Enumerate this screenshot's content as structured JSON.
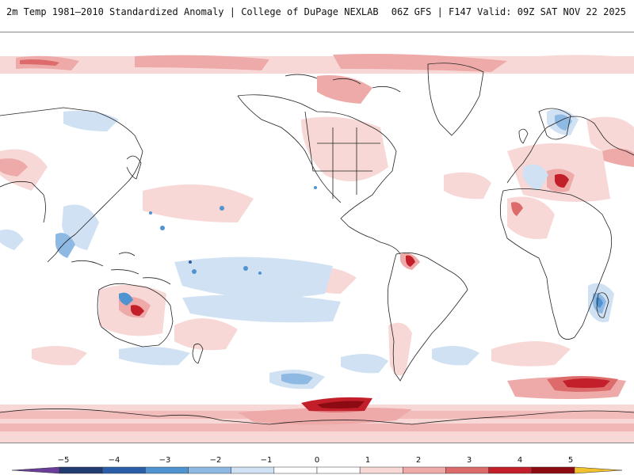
{
  "header": {
    "title": "2m Temp 1981–2010 Standardized Anomaly | College of DuPage NEXLAB",
    "run_info": "06Z GFS | F147 Valid: 09Z SAT NOV 22 2025"
  },
  "colors": {
    "strong_cold": "#1f3b70",
    "cold_4": "#2a5ea8",
    "cold_3": "#4f93d0",
    "cold_2": "#8db9e3",
    "cold_1": "#cfe1f3",
    "neutral": "#ffffff",
    "warm_1": "#f7d8d6",
    "warm_2": "#eeaaa8",
    "warm_3": "#dd6b6b",
    "warm_4": "#c21f2a",
    "warm_5": "#8c0b13",
    "extreme_cold": "#6a3d9a",
    "extreme_warm": "#f2c12e",
    "coastline": "#222222"
  },
  "colorbar": {
    "ticks": [
      "−5",
      "−4",
      "−3",
      "−2",
      "−1",
      "0",
      "1",
      "2",
      "3",
      "4",
      "5"
    ],
    "segment_colors": [
      "#6a3d9a",
      "#1f3b70",
      "#2a5ea8",
      "#4f93d0",
      "#8db9e3",
      "#cfe1f3",
      "#ffffff",
      "#ffffff",
      "#f7d8d6",
      "#eeaaa8",
      "#dd6b6b",
      "#c21f2a",
      "#8c0b13",
      "#f2c12e"
    ]
  }
}
